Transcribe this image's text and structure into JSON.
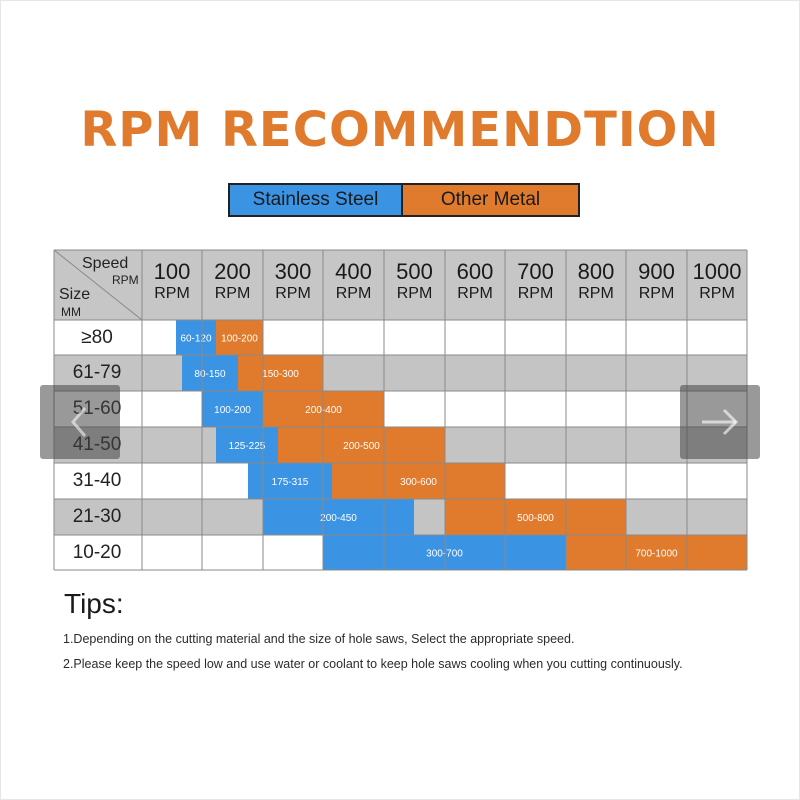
{
  "title": "RPM RECOMMENDTION",
  "legend": {
    "stainless": "Stainless Steel",
    "other": "Other Metal",
    "stainless_color": "#3a93e3",
    "other_color": "#e07a2c"
  },
  "header": {
    "speed": "Speed",
    "rpm": "RPM",
    "size": "Size",
    "mm": "MM"
  },
  "columns": [
    {
      "n": "100",
      "u": "RPM"
    },
    {
      "n": "200",
      "u": "RPM"
    },
    {
      "n": "300",
      "u": "RPM"
    },
    {
      "n": "400",
      "u": "RPM"
    },
    {
      "n": "500",
      "u": "RPM"
    },
    {
      "n": "600",
      "u": "RPM"
    },
    {
      "n": "700",
      "u": "RPM"
    },
    {
      "n": "800",
      "u": "RPM"
    },
    {
      "n": "900",
      "u": "RPM"
    },
    {
      "n": "1000",
      "u": "RPM"
    }
  ],
  "rows": [
    {
      "size": "≥80",
      "stainless": "60-120",
      "other": "100-200"
    },
    {
      "size": "61-79",
      "stainless": "80-150",
      "other": "150-300"
    },
    {
      "size": "51-60",
      "stainless": "100-200",
      "other": "200-400"
    },
    {
      "size": "41-50",
      "stainless": "125-225",
      "other": "200-500"
    },
    {
      "size": "31-40",
      "stainless": "175-315",
      "other": "300-600"
    },
    {
      "size": "21-30",
      "stainless": "200-450",
      "other": "500-800"
    },
    {
      "size": "10-20",
      "stainless": "300-700",
      "other": "700-1000"
    }
  ],
  "tips": {
    "heading": "Tips:",
    "line1": "1.Depending on the cutting material and the size of hole saws, Select the appropriate speed.",
    "line2": "2.Please keep the speed low and use water or coolant to keep hole saws cooling when you cutting continuously."
  },
  "nav": {
    "prev_icon": "chevron-left-icon",
    "next_icon": "arrow-right-icon"
  }
}
